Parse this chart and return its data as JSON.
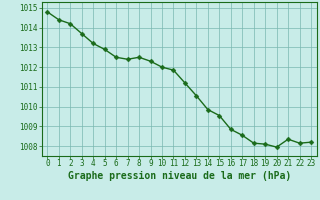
{
  "x": [
    0,
    1,
    2,
    3,
    4,
    5,
    6,
    7,
    8,
    9,
    10,
    11,
    12,
    13,
    14,
    15,
    16,
    17,
    18,
    19,
    20,
    21,
    22,
    23
  ],
  "y": [
    1014.8,
    1014.4,
    1014.2,
    1013.7,
    1013.2,
    1012.9,
    1012.5,
    1012.4,
    1012.5,
    1012.3,
    1012.0,
    1011.85,
    1011.2,
    1010.55,
    1009.85,
    1009.55,
    1008.85,
    1008.55,
    1008.15,
    1008.1,
    1007.95,
    1008.35,
    1008.15,
    1008.2
  ],
  "line_color": "#1a6b1a",
  "marker_color": "#1a6b1a",
  "bg_color": "#c8ece8",
  "grid_color": "#7ab8b0",
  "ylabel_ticks": [
    1008,
    1009,
    1010,
    1011,
    1012,
    1013,
    1014,
    1015
  ],
  "ylim": [
    1007.5,
    1015.3
  ],
  "xlim": [
    -0.5,
    23.5
  ],
  "xlabel": "Graphe pression niveau de la mer (hPa)",
  "xlabel_fontsize": 7.0,
  "tick_fontsize": 5.5,
  "marker_size": 2.5,
  "line_width": 1.0
}
